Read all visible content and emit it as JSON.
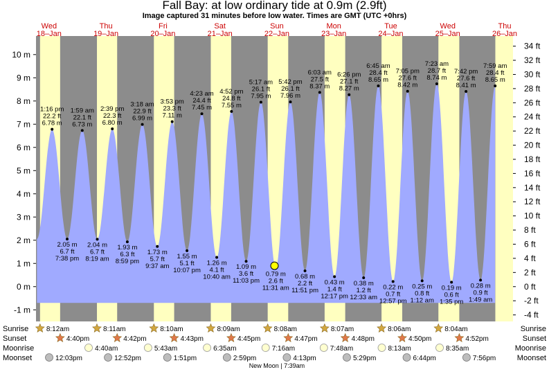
{
  "title": "Fall Bay: at low  ordinary tide at 0.9m (2.9ft)",
  "subtitle": "Image captured 31 minutes before low water. Times are GMT (UTC +0hrs)",
  "colors": {
    "night": "#8c8c8c",
    "day": "#ffffc0",
    "water": "#a0aaff",
    "day_header": "#cc0000",
    "current_marker": "#ffff00"
  },
  "chart_data": {
    "type": "area",
    "title": "Fall Bay: at low  ordinary tide at 0.9m (2.9ft)",
    "subtitle": "Image captured 31 minutes before low water. Times are GMT (UTC +0hrs)",
    "ylabel_left_unit": "m",
    "ylabel_right_unit": "ft",
    "ylim_m": [
      -1.5,
      10.8
    ],
    "y_ticks_m": [
      {
        "v": -1,
        "label": "-1 m"
      },
      {
        "v": 0,
        "label": "0 m"
      },
      {
        "v": 1,
        "label": "1 m"
      },
      {
        "v": 2,
        "label": "2 m"
      },
      {
        "v": 3,
        "label": "3 m"
      },
      {
        "v": 4,
        "label": "4 m"
      },
      {
        "v": 5,
        "label": "5 m"
      },
      {
        "v": 6,
        "label": "6 m"
      },
      {
        "v": 7,
        "label": "7 m"
      },
      {
        "v": 8,
        "label": "8 m"
      },
      {
        "v": 9,
        "label": "9 m"
      },
      {
        "v": 10,
        "label": "10 m"
      }
    ],
    "y_ticks_ft": [
      {
        "v": -4,
        "label": "-4 ft"
      },
      {
        "v": -2,
        "label": "-2 ft"
      },
      {
        "v": 0,
        "label": "0 ft"
      },
      {
        "v": 2,
        "label": "2 ft"
      },
      {
        "v": 4,
        "label": "4 ft"
      },
      {
        "v": 6,
        "label": "6 ft"
      },
      {
        "v": 8,
        "label": "8 ft"
      },
      {
        "v": 10,
        "label": "10 ft"
      },
      {
        "v": 12,
        "label": "12 ft"
      },
      {
        "v": 14,
        "label": "14 ft"
      },
      {
        "v": 16,
        "label": "16 ft"
      },
      {
        "v": 18,
        "label": "18 ft"
      },
      {
        "v": 20,
        "label": "20 ft"
      },
      {
        "v": 22,
        "label": "22 ft"
      },
      {
        "v": 24,
        "label": "24 ft"
      },
      {
        "v": 26,
        "label": "26 ft"
      },
      {
        "v": 28,
        "label": "28 ft"
      },
      {
        "v": 30,
        "label": "30 ft"
      },
      {
        "v": 32,
        "label": "32 ft"
      },
      {
        "v": 34,
        "label": "34 ft"
      }
    ],
    "days": [
      {
        "dow": "Wed",
        "date": "18–Jan",
        "sunrise": 8.2,
        "sunset": 16.67
      },
      {
        "dow": "Thu",
        "date": "19–Jan",
        "sunrise": 8.18,
        "sunset": 16.7
      },
      {
        "dow": "Fri",
        "date": "20–Jan",
        "sunrise": 8.17,
        "sunset": 16.72
      },
      {
        "dow": "Sat",
        "date": "21–Jan",
        "sunrise": 8.15,
        "sunset": 16.75
      },
      {
        "dow": "Sun",
        "date": "22–Jan",
        "sunrise": 8.13,
        "sunset": 16.78
      },
      {
        "dow": "Mon",
        "date": "23–Jan",
        "sunrise": 8.12,
        "sunset": 16.8
      },
      {
        "dow": "Tue",
        "date": "24–Jan",
        "sunrise": 8.1,
        "sunset": 16.83
      },
      {
        "dow": "Wed",
        "date": "25–Jan",
        "sunrise": 8.07,
        "sunset": 16.87
      },
      {
        "dow": "Thu",
        "date": "26–Jan",
        "sunrise": 8.05,
        "sunset": 16.9
      }
    ],
    "tides": [
      {
        "day": 0,
        "t": 13.27,
        "m": 6.78,
        "type": "high",
        "lines": [
          "1:16 pm",
          "22.2 ft",
          "6.78 m"
        ]
      },
      {
        "day": 0,
        "t": 19.63,
        "m": 2.05,
        "type": "low",
        "lines": [
          "2.05 m",
          "6.7 ft",
          "7:38 pm"
        ]
      },
      {
        "day": 1,
        "t": 1.98,
        "m": 6.73,
        "type": "high",
        "lines": [
          "1:59 am",
          "22.1 ft",
          "6.73 m"
        ]
      },
      {
        "day": 1,
        "t": 8.32,
        "m": 2.04,
        "type": "low",
        "lines": [
          "2.04 m",
          "6.7 ft",
          "8:19 am"
        ]
      },
      {
        "day": 1,
        "t": 14.65,
        "m": 6.8,
        "type": "high",
        "lines": [
          "2:39 pm",
          "22.3 ft",
          "6.80 m"
        ]
      },
      {
        "day": 1,
        "t": 20.98,
        "m": 1.93,
        "type": "low",
        "lines": [
          "1.93 m",
          "6.3 ft",
          "8:59 pm"
        ]
      },
      {
        "day": 2,
        "t": 3.3,
        "m": 6.99,
        "type": "high",
        "lines": [
          "3:18 am",
          "22.9 ft",
          "6.99 m"
        ]
      },
      {
        "day": 2,
        "t": 9.62,
        "m": 1.73,
        "type": "low",
        "lines": [
          "1.73 m",
          "5.7 ft",
          "9:37 am"
        ]
      },
      {
        "day": 2,
        "t": 15.88,
        "m": 7.11,
        "type": "high",
        "lines": [
          "3:53 pm",
          "23.3 ft",
          "7.11 m"
        ]
      },
      {
        "day": 2,
        "t": 22.12,
        "m": 1.55,
        "type": "low",
        "lines": [
          "1.55 m",
          "5.1 ft",
          "10:07 pm"
        ]
      },
      {
        "day": 3,
        "t": 4.38,
        "m": 7.45,
        "type": "high",
        "lines": [
          "4:23 am",
          "24.4 ft",
          "7.45 m"
        ]
      },
      {
        "day": 3,
        "t": 10.67,
        "m": 1.26,
        "type": "low",
        "lines": [
          "1.26 m",
          "4.1 ft",
          "10:40 am"
        ]
      },
      {
        "day": 3,
        "t": 16.87,
        "m": 7.55,
        "type": "high",
        "lines": [
          "4:52 pm",
          "24.8 ft",
          "7.55 m"
        ]
      },
      {
        "day": 3,
        "t": 23.05,
        "m": 1.09,
        "type": "low",
        "lines": [
          "1.09 m",
          "3.6 ft",
          "11:03 pm"
        ]
      },
      {
        "day": 4,
        "t": 5.28,
        "m": 7.95,
        "type": "high",
        "lines": [
          "5:17 am",
          "26.1 ft",
          "7.95 m"
        ]
      },
      {
        "day": 4,
        "t": 11.52,
        "m": 0.79,
        "type": "low",
        "lines": [
          "0.79 m",
          "2.6 ft",
          "11:31 am"
        ]
      },
      {
        "day": 4,
        "t": 17.7,
        "m": 7.96,
        "type": "high",
        "lines": [
          "5:42 pm",
          "26.1 ft",
          "7.96 m"
        ]
      },
      {
        "day": 4,
        "t": 23.85,
        "m": 0.68,
        "type": "low",
        "lines": [
          "0.68 m",
          "2.2 ft",
          "11:51 pm"
        ]
      },
      {
        "day": 5,
        "t": 6.05,
        "m": 8.37,
        "type": "high",
        "lines": [
          "6:03 am",
          "27.5 ft",
          "8.37 m"
        ]
      },
      {
        "day": 5,
        "t": 12.28,
        "m": 0.43,
        "type": "low",
        "lines": [
          "0.43 m",
          "1.4 ft",
          "12:17 pm"
        ]
      },
      {
        "day": 5,
        "t": 18.43,
        "m": 8.27,
        "type": "high",
        "lines": [
          "6:26 pm",
          "27.1 ft",
          "8.27 m"
        ]
      },
      {
        "day": 6,
        "t": 0.55,
        "m": 0.38,
        "type": "low",
        "lines": [
          "0.38 m",
          "1.2 ft",
          "12:33 am"
        ]
      },
      {
        "day": 6,
        "t": 6.75,
        "m": 8.65,
        "type": "high",
        "lines": [
          "6:45 am",
          "28.4 ft",
          "8.65 m"
        ]
      },
      {
        "day": 6,
        "t": 12.95,
        "m": 0.22,
        "type": "low",
        "lines": [
          "0.22 m",
          "0.7 ft",
          "12:57 pm"
        ]
      },
      {
        "day": 6,
        "t": 19.08,
        "m": 8.42,
        "type": "high",
        "lines": [
          "7:05 pm",
          "27.6 ft",
          "8.42 m"
        ]
      },
      {
        "day": 7,
        "t": 1.2,
        "m": 0.25,
        "type": "low",
        "lines": [
          "0.25 m",
          "0.8 ft",
          "1:12 am"
        ]
      },
      {
        "day": 7,
        "t": 7.38,
        "m": 8.74,
        "type": "high",
        "lines": [
          "7:23 am",
          "28.7 ft",
          "8.74 m"
        ]
      },
      {
        "day": 7,
        "t": 13.58,
        "m": 0.19,
        "type": "low",
        "lines": [
          "0.19 m",
          "0.6 ft",
          "1:35 pm"
        ]
      },
      {
        "day": 7,
        "t": 19.7,
        "m": 8.41,
        "type": "high",
        "lines": [
          "7:42 pm",
          "27.6 ft",
          "8.41 m"
        ]
      },
      {
        "day": 8,
        "t": 1.82,
        "m": 0.28,
        "type": "low",
        "lines": [
          "0.28 m",
          "0.9 ft",
          "1:49 am"
        ]
      },
      {
        "day": 8,
        "t": 7.98,
        "m": 8.65,
        "type": "high",
        "lines": [
          "7:59 am",
          "28.4 ft",
          "8.65 m"
        ]
      }
    ],
    "current": {
      "day": 4,
      "t": 11.0,
      "m": 0.9
    },
    "astro_rows": [
      {
        "label": "Sunrise",
        "kind": "sunrise",
        "events": [
          {
            "day": 0,
            "t": 8.2,
            "text": "8:12am"
          },
          {
            "day": 1,
            "t": 8.18,
            "text": "8:11am"
          },
          {
            "day": 2,
            "t": 8.17,
            "text": "8:10am"
          },
          {
            "day": 3,
            "t": 8.15,
            "text": "8:09am"
          },
          {
            "day": 4,
            "t": 8.13,
            "text": "8:08am"
          },
          {
            "day": 5,
            "t": 8.12,
            "text": "8:07am"
          },
          {
            "day": 6,
            "t": 8.1,
            "text": "8:06am"
          },
          {
            "day": 7,
            "t": 8.07,
            "text": "8:04am"
          }
        ]
      },
      {
        "label": "Sunset",
        "kind": "sunset",
        "events": [
          {
            "day": 0,
            "t": 16.67,
            "text": "4:40pm"
          },
          {
            "day": 1,
            "t": 16.7,
            "text": "4:42pm"
          },
          {
            "day": 2,
            "t": 16.72,
            "text": "4:43pm"
          },
          {
            "day": 3,
            "t": 16.75,
            "text": "4:45pm"
          },
          {
            "day": 4,
            "t": 16.78,
            "text": "4:47pm"
          },
          {
            "day": 5,
            "t": 16.8,
            "text": "4:48pm"
          },
          {
            "day": 6,
            "t": 16.83,
            "text": "4:50pm"
          },
          {
            "day": 7,
            "t": 16.87,
            "text": "4:52pm"
          }
        ]
      },
      {
        "label": "Moonrise",
        "kind": "moonrise",
        "events": [
          {
            "day": 1,
            "t": 4.67,
            "text": "4:40am"
          },
          {
            "day": 2,
            "t": 5.72,
            "text": "5:43am"
          },
          {
            "day": 3,
            "t": 6.58,
            "text": "6:35am"
          },
          {
            "day": 4,
            "t": 7.27,
            "text": "7:16am"
          },
          {
            "day": 5,
            "t": 7.8,
            "text": "7:48am"
          },
          {
            "day": 6,
            "t": 8.22,
            "text": "8:13am"
          },
          {
            "day": 7,
            "t": 8.58,
            "text": "8:35am"
          }
        ]
      },
      {
        "label": "Moonset",
        "kind": "moonset",
        "events": [
          {
            "day": 0,
            "t": 12.05,
            "text": "12:03pm"
          },
          {
            "day": 1,
            "t": 12.87,
            "text": "12:52pm"
          },
          {
            "day": 2,
            "t": 13.85,
            "text": "1:51pm"
          },
          {
            "day": 3,
            "t": 14.98,
            "text": "2:59pm"
          },
          {
            "day": 4,
            "t": 16.22,
            "text": "4:13pm"
          },
          {
            "day": 5,
            "t": 17.48,
            "text": "5:29pm"
          },
          {
            "day": 6,
            "t": 18.73,
            "text": "6:44pm"
          },
          {
            "day": 7,
            "t": 19.93,
            "text": "7:56pm"
          }
        ]
      }
    ],
    "moon_phase_note": "New Moon | 7:39am"
  }
}
